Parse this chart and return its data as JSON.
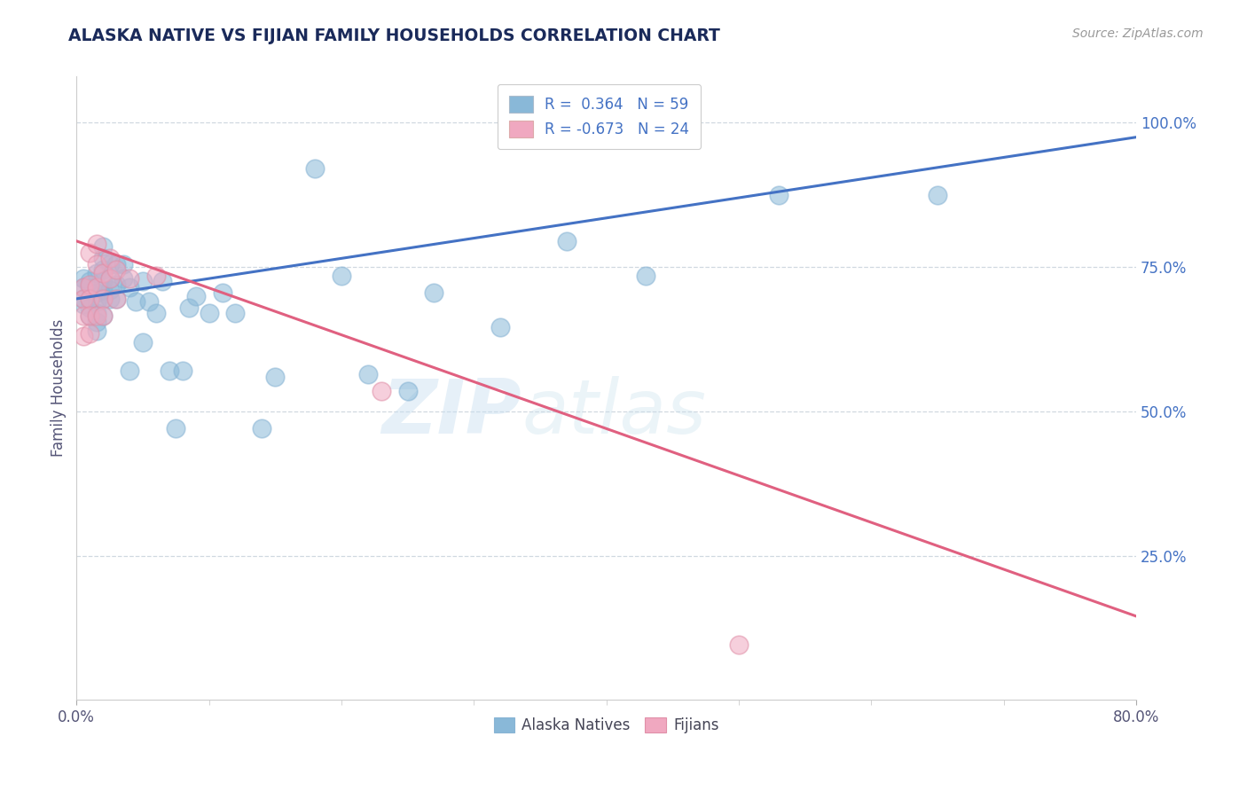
{
  "title": "ALASKA NATIVE VS FIJIAN FAMILY HOUSEHOLDS CORRELATION CHART",
  "source": "Source: ZipAtlas.com",
  "ylabel": "Family Households",
  "legend_entries": [
    {
      "label": "R =  0.364   N = 59",
      "color": "#a8c8e8"
    },
    {
      "label": "R = -0.673   N = 24",
      "color": "#f4b8c8"
    }
  ],
  "blue_line": {
    "x0": 0.0,
    "y0": 0.695,
    "x1": 0.8,
    "y1": 0.975
  },
  "pink_line": {
    "x0": 0.0,
    "y0": 0.795,
    "x1": 0.8,
    "y1": 0.145
  },
  "blue_points": [
    [
      0.005,
      0.685
    ],
    [
      0.005,
      0.715
    ],
    [
      0.005,
      0.73
    ],
    [
      0.005,
      0.695
    ],
    [
      0.01,
      0.715
    ],
    [
      0.01,
      0.695
    ],
    [
      0.01,
      0.725
    ],
    [
      0.01,
      0.68
    ],
    [
      0.01,
      0.665
    ],
    [
      0.015,
      0.74
    ],
    [
      0.015,
      0.705
    ],
    [
      0.015,
      0.69
    ],
    [
      0.015,
      0.67
    ],
    [
      0.015,
      0.655
    ],
    [
      0.015,
      0.64
    ],
    [
      0.02,
      0.785
    ],
    [
      0.02,
      0.765
    ],
    [
      0.02,
      0.745
    ],
    [
      0.02,
      0.725
    ],
    [
      0.02,
      0.71
    ],
    [
      0.02,
      0.695
    ],
    [
      0.02,
      0.665
    ],
    [
      0.025,
      0.755
    ],
    [
      0.025,
      0.73
    ],
    [
      0.025,
      0.71
    ],
    [
      0.025,
      0.695
    ],
    [
      0.03,
      0.755
    ],
    [
      0.03,
      0.72
    ],
    [
      0.03,
      0.695
    ],
    [
      0.035,
      0.755
    ],
    [
      0.035,
      0.73
    ],
    [
      0.04,
      0.715
    ],
    [
      0.04,
      0.57
    ],
    [
      0.045,
      0.69
    ],
    [
      0.05,
      0.725
    ],
    [
      0.05,
      0.62
    ],
    [
      0.055,
      0.69
    ],
    [
      0.06,
      0.67
    ],
    [
      0.065,
      0.725
    ],
    [
      0.07,
      0.57
    ],
    [
      0.075,
      0.47
    ],
    [
      0.08,
      0.57
    ],
    [
      0.085,
      0.68
    ],
    [
      0.09,
      0.7
    ],
    [
      0.1,
      0.67
    ],
    [
      0.11,
      0.705
    ],
    [
      0.12,
      0.67
    ],
    [
      0.14,
      0.47
    ],
    [
      0.15,
      0.56
    ],
    [
      0.18,
      0.92
    ],
    [
      0.2,
      0.735
    ],
    [
      0.22,
      0.565
    ],
    [
      0.25,
      0.535
    ],
    [
      0.27,
      0.705
    ],
    [
      0.32,
      0.645
    ],
    [
      0.37,
      0.795
    ],
    [
      0.43,
      0.735
    ],
    [
      0.53,
      0.875
    ],
    [
      0.65,
      0.875
    ]
  ],
  "pink_points": [
    [
      0.005,
      0.715
    ],
    [
      0.005,
      0.695
    ],
    [
      0.005,
      0.665
    ],
    [
      0.005,
      0.63
    ],
    [
      0.01,
      0.775
    ],
    [
      0.01,
      0.72
    ],
    [
      0.01,
      0.695
    ],
    [
      0.01,
      0.665
    ],
    [
      0.01,
      0.635
    ],
    [
      0.015,
      0.79
    ],
    [
      0.015,
      0.755
    ],
    [
      0.015,
      0.715
    ],
    [
      0.015,
      0.665
    ],
    [
      0.02,
      0.74
    ],
    [
      0.02,
      0.695
    ],
    [
      0.02,
      0.665
    ],
    [
      0.025,
      0.765
    ],
    [
      0.025,
      0.73
    ],
    [
      0.03,
      0.745
    ],
    [
      0.03,
      0.695
    ],
    [
      0.04,
      0.73
    ],
    [
      0.06,
      0.735
    ],
    [
      0.23,
      0.535
    ],
    [
      0.5,
      0.095
    ]
  ],
  "bg_color": "#ffffff",
  "blue_color": "#89b8d8",
  "pink_color": "#f0a8c0",
  "blue_line_color": "#4472c4",
  "pink_line_color": "#e06080",
  "title_color": "#1a2a5a",
  "grid_color": "#d0d8e0",
  "source_color": "#999999",
  "xlim": [
    0.0,
    0.8
  ],
  "ylim": [
    0.0,
    1.08
  ],
  "yticks": [
    0.25,
    0.5,
    0.75,
    1.0
  ],
  "yticklabels": [
    "25.0%",
    "50.0%",
    "75.0%",
    "100.0%"
  ],
  "xtick_left": "0.0%",
  "xtick_right": "80.0%"
}
